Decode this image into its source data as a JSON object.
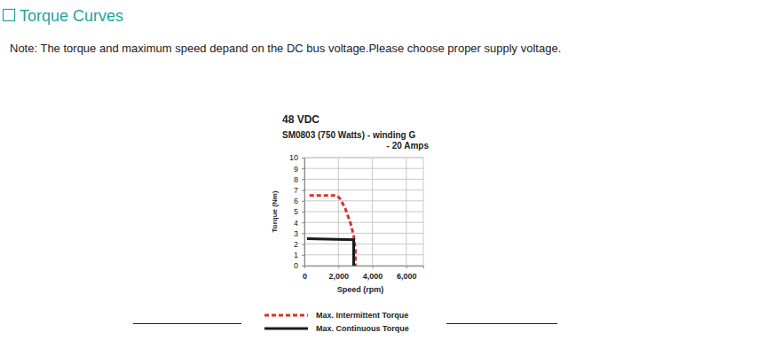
{
  "heading": "Torque Curves",
  "note": "Note: The torque and maximum speed depand on the DC bus voltage.Please choose proper supply voltage.",
  "chart_data": {
    "type": "line",
    "title": "48 VDC",
    "subtitle": [
      "SM0803 (750 Watts) - winding G",
      "- 20 Amps"
    ],
    "x_label": "Speed (rpm)",
    "y_label": "Torque (Nm)",
    "xlim": [
      0,
      7000
    ],
    "xticks": [
      0,
      {
        "value": 2000,
        "label": "2,000"
      },
      {
        "value": 4000,
        "label": "4,000"
      },
      {
        "value": 6000,
        "label": "6,000"
      }
    ],
    "ylim": [
      0,
      10
    ],
    "yticks": [
      0,
      1,
      2,
      3,
      4,
      5,
      6,
      7,
      8,
      9,
      10
    ],
    "grid": true,
    "legend": "bottom",
    "series": [
      {
        "name": "Max. Intermittent Torque",
        "color": "#d9312b",
        "line_style": "dashed",
        "x": [
          300,
          1900,
          2100,
          2400,
          2700,
          2900,
          3000,
          3000
        ],
        "values": [
          6.5,
          6.5,
          6.2,
          5.3,
          4.0,
          2.8,
          1.5,
          0
        ]
      },
      {
        "name": "Max. Continuous Torque",
        "color": "#1a1a1a",
        "line_style": "solid",
        "x": [
          150,
          2900,
          2900
        ],
        "values": [
          2.5,
          2.4,
          0
        ]
      }
    ]
  }
}
